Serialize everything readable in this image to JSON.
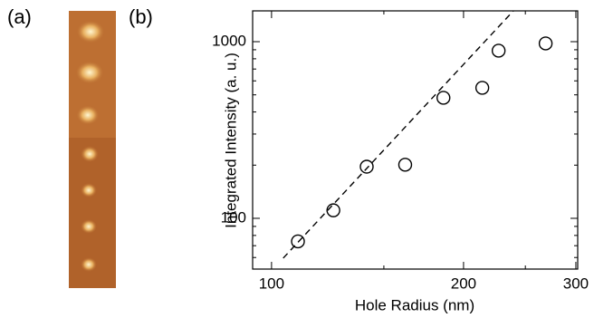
{
  "panel_labels": [
    "(a)",
    "(b)"
  ],
  "chart_data": {
    "type": "scatter",
    "xlabel": "Hole Radius (nm)",
    "ylabel": "Integrated Intensity (a. u.)",
    "xscale": "log",
    "yscale": "log",
    "xlim": [
      93.4,
      302
    ],
    "ylim": [
      51.6,
      1494
    ],
    "xticks": [
      100,
      200,
      300
    ],
    "yticks": [
      100,
      1000
    ],
    "xminor_ticks": [
      150,
      250
    ],
    "yminor_ticks": [
      60,
      70,
      80,
      90,
      200,
      300,
      400,
      500,
      600,
      700,
      800,
      900
    ],
    "x": [
      110,
      125,
      141,
      162,
      186,
      214,
      227,
      269
    ],
    "values": [
      74,
      111,
      196,
      201,
      481,
      548,
      889,
      977
    ],
    "color": "#000000",
    "fit_line": {
      "x": [
        104.3,
        239.4
      ],
      "values": [
        59.5,
        1494
      ],
      "color": "#000000",
      "dashed": true
    }
  }
}
